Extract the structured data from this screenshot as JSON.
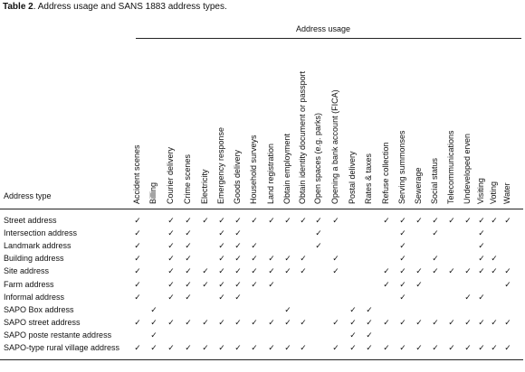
{
  "title": {
    "label": "Table 2",
    "text": ". Address usage and SANS 1883 address types."
  },
  "table": {
    "group_header": "Address usage",
    "row_header": "Address type",
    "columns": [
      "Accident scenes",
      "Billing",
      "Courier delivery",
      "Crime scenes",
      "Electricity",
      "Emergency response",
      "Goods delivery",
      "Household surveys",
      "Land registration",
      "Obtain employment",
      "Obtain identity document or passport",
      "Open spaces (e.g. parks)",
      "Opening a bank account (FICA)",
      "Postal delivery",
      "Rates & taxes",
      "Refuse collection",
      "Serving summonses",
      "Sewerage",
      "Social status",
      "Telecommunications",
      "Undeveloped erven",
      "Visiting",
      "Voting",
      "Water"
    ],
    "rows": [
      {
        "label": "Street address",
        "cells": [
          "✓",
          null,
          "✓",
          "✓",
          "✓",
          "✓",
          "✓",
          "✓",
          "✓",
          "✓",
          "✓",
          "✓",
          "✓",
          null,
          null,
          "✓",
          "✓",
          "✓",
          "✓",
          "✓",
          "✓",
          "✓",
          "✓",
          "✓"
        ]
      },
      {
        "label": "Intersection address",
        "cells": [
          "✓",
          null,
          "✓",
          "✓",
          null,
          "✓",
          "✓",
          null,
          null,
          null,
          null,
          "✓",
          null,
          null,
          null,
          null,
          "✓",
          null,
          "✓",
          null,
          null,
          "✓",
          null,
          null
        ]
      },
      {
        "label": "Landmark address",
        "cells": [
          "✓",
          null,
          "✓",
          "✓",
          null,
          "✓",
          "✓",
          "✓",
          null,
          null,
          null,
          "✓",
          null,
          null,
          null,
          null,
          "✓",
          null,
          null,
          null,
          null,
          "✓",
          null,
          null
        ]
      },
      {
        "label": "Building address",
        "cells": [
          "✓",
          null,
          "✓",
          "✓",
          null,
          "✓",
          "✓",
          "✓",
          "✓",
          "✓",
          "✓",
          null,
          "✓",
          null,
          null,
          null,
          "✓",
          null,
          "✓",
          null,
          null,
          "✓",
          "✓",
          null
        ]
      },
      {
        "label": "Site address",
        "cells": [
          "✓",
          null,
          "✓",
          "✓",
          "✓",
          "✓",
          "✓",
          "✓",
          "✓",
          "✓",
          "✓",
          null,
          "✓",
          null,
          null,
          "✓",
          "✓",
          "✓",
          "✓",
          "✓",
          "✓",
          "✓",
          "✓",
          "✓"
        ]
      },
      {
        "label": "Farm address",
        "cells": [
          "✓",
          null,
          "✓",
          "✓",
          "✓",
          "✓",
          "✓",
          "✓",
          "✓",
          null,
          null,
          null,
          null,
          null,
          null,
          "✓",
          "✓",
          "✓",
          null,
          null,
          null,
          null,
          null,
          "✓"
        ]
      },
      {
        "label": "Informal address",
        "cells": [
          "✓",
          null,
          "✓",
          "✓",
          null,
          "✓",
          "✓",
          null,
          null,
          null,
          null,
          null,
          null,
          null,
          null,
          null,
          "✓",
          null,
          null,
          null,
          "✓",
          "✓",
          null,
          null
        ]
      },
      {
        "label": "SAPO Box address",
        "cells": [
          null,
          "✓",
          null,
          null,
          null,
          null,
          null,
          null,
          null,
          "✓",
          null,
          null,
          null,
          "✓",
          "✓",
          null,
          null,
          null,
          null,
          null,
          null,
          null,
          null,
          null
        ]
      },
      {
        "label": "SAPO street address",
        "cells": [
          "✓",
          "✓",
          "✓",
          "✓",
          "✓",
          "✓",
          "✓",
          "✓",
          "✓",
          "✓",
          "✓",
          null,
          "✓",
          "✓",
          "✓",
          "✓",
          "✓",
          "✓",
          "✓",
          "✓",
          "✓",
          "✓",
          "✓",
          "✓"
        ]
      },
      {
        "label": "SAPO poste restante address",
        "cells": [
          null,
          "✓",
          null,
          null,
          null,
          null,
          null,
          null,
          null,
          null,
          null,
          null,
          null,
          "✓",
          "✓",
          null,
          null,
          null,
          null,
          null,
          null,
          null,
          null,
          null
        ]
      },
      {
        "label": "SAPO-type rural village address",
        "cells": [
          "✓",
          "✓",
          "✓",
          "✓",
          "✓",
          "✓",
          "✓",
          "✓",
          "✓",
          "✓",
          "✓",
          null,
          "✓",
          "✓",
          "✓",
          "✓",
          "✓",
          "✓",
          "✓",
          "✓",
          "✓",
          "✓",
          "✓",
          "✓"
        ]
      }
    ]
  }
}
